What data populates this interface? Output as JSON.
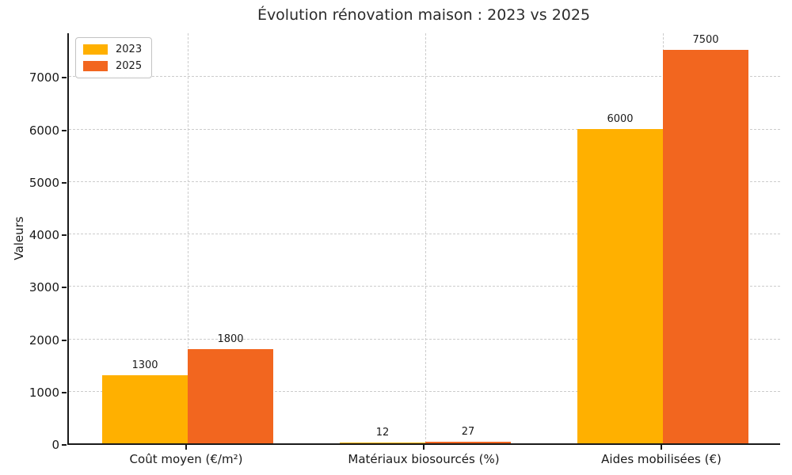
{
  "chart_data": {
    "type": "bar",
    "title": "Évolution rénovation maison : 2023 vs 2025",
    "ylabel": "Valeurs",
    "xlabel": "",
    "categories": [
      "Coût moyen (€/m²)",
      "Matériaux biosourcés (%)",
      "Aides mobilisées (€)"
    ],
    "series": [
      {
        "name": "2023",
        "color": "#FFB000",
        "values": [
          1300,
          12,
          6000
        ]
      },
      {
        "name": "2025",
        "color": "#F2661F",
        "values": [
          1800,
          27,
          7500
        ]
      }
    ],
    "bar_value_labels": [
      "1300",
      "1800",
      "12",
      "27",
      "6000",
      "7500"
    ],
    "ylim": [
      0,
      7850
    ],
    "yticks": [
      0,
      1000,
      2000,
      3000,
      4000,
      5000,
      6000,
      7000
    ],
    "grid": "both, dashed, light-gray",
    "legend_position": "upper-left"
  }
}
